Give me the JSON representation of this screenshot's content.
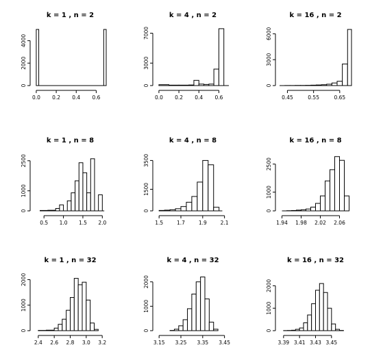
{
  "chart_data": [
    {
      "type": "bar",
      "title": "k = 1 , n = 2",
      "xlim": [
        -0.02,
        0.7
      ],
      "xticks": [
        0.0,
        0.2,
        0.4,
        0.6
      ],
      "xtick_labels": [
        "0.0",
        "0.2",
        "0.4",
        "0.6"
      ],
      "ylim": [
        0,
        5000
      ],
      "yticks": [
        0,
        2000,
        4000
      ],
      "ytick_labels": [
        "0",
        "2000",
        "4000"
      ],
      "bin_edges": [
        0.0,
        0.025,
        0.05,
        0.075,
        0.1,
        0.125,
        0.15,
        0.175,
        0.2,
        0.225,
        0.25,
        0.275,
        0.3,
        0.325,
        0.35,
        0.375,
        0.4,
        0.425,
        0.45,
        0.475,
        0.5,
        0.525,
        0.55,
        0.575,
        0.6,
        0.625,
        0.65,
        0.675,
        0.7
      ],
      "counts": [
        5000,
        0,
        0,
        0,
        0,
        0,
        0,
        0,
        0,
        0,
        0,
        0,
        0,
        0,
        0,
        0,
        0,
        0,
        0,
        0,
        0,
        0,
        0,
        0,
        0,
        0,
        0,
        5000
      ]
    },
    {
      "type": "bar",
      "title": "k = 4 , n = 2",
      "xlim": [
        -0.02,
        0.7
      ],
      "xticks": [
        0.0,
        0.2,
        0.4,
        0.6
      ],
      "xtick_labels": [
        "0.0",
        "0.2",
        "0.4",
        "0.6"
      ],
      "ylim": [
        0,
        7500
      ],
      "yticks": [
        0,
        3000,
        7000
      ],
      "ytick_labels": [
        "0",
        "3000",
        "7000"
      ],
      "bin_edges": [
        0.0,
        0.1,
        0.2,
        0.3,
        0.35,
        0.4,
        0.45,
        0.5,
        0.55,
        0.6,
        0.65,
        0.7
      ],
      "counts": [
        120,
        60,
        60,
        80,
        700,
        200,
        150,
        200,
        2200,
        7600,
        0
      ]
    },
    {
      "type": "bar",
      "title": "k = 16 , n = 2",
      "xlim": [
        0.42,
        0.695
      ],
      "xticks": [
        0.45,
        0.55,
        0.65
      ],
      "xtick_labels": [
        "0.45",
        "0.55",
        "0.65"
      ],
      "ylim": [
        0,
        6500
      ],
      "yticks": [
        0,
        3000,
        6000
      ],
      "ytick_labels": [
        "0",
        "3000",
        "6000"
      ],
      "bin_edges": [
        0.42,
        0.44,
        0.46,
        0.48,
        0.5,
        0.52,
        0.54,
        0.56,
        0.58,
        0.6,
        0.62,
        0.64,
        0.66,
        0.68,
        0.695
      ],
      "counts": [
        0,
        10,
        10,
        20,
        20,
        30,
        50,
        70,
        100,
        160,
        300,
        500,
        2500,
        6500
      ]
    },
    {
      "type": "bar",
      "title": "k = 1 , n = 8",
      "xlim": [
        0.25,
        2.1
      ],
      "xticks": [
        0.5,
        1.0,
        1.5,
        2.0
      ],
      "xtick_labels": [
        "0.5",
        "1.0",
        "1.5",
        "2.0"
      ],
      "ylim": [
        0,
        2800
      ],
      "yticks": [
        0,
        1000,
        2500
      ],
      "ytick_labels": [
        "0",
        "1000",
        "2500"
      ],
      "bin_edges": [
        0.4,
        0.6,
        0.8,
        0.9,
        1.0,
        1.1,
        1.2,
        1.3,
        1.4,
        1.5,
        1.6,
        1.7,
        1.8,
        1.9,
        2.0,
        2.05
      ],
      "counts": [
        20,
        30,
        120,
        300,
        0,
        500,
        900,
        1500,
        2400,
        1900,
        900,
        2600,
        0,
        800,
        0
      ]
    },
    {
      "type": "bar",
      "title": "k = 4 , n = 8",
      "xlim": [
        1.48,
        2.14
      ],
      "xticks": [
        1.5,
        1.7,
        1.9,
        2.1
      ],
      "xtick_labels": [
        "1.5",
        "1.7",
        "1.9",
        "2.1"
      ],
      "ylim": [
        0,
        3900
      ],
      "yticks": [
        0,
        1500,
        3500
      ],
      "ytick_labels": [
        "0",
        "1500",
        "3500"
      ],
      "bin_edges": [
        1.5,
        1.55,
        1.6,
        1.65,
        1.7,
        1.75,
        1.8,
        1.85,
        1.9,
        1.95,
        2.0,
        2.05,
        2.08
      ],
      "counts": [
        30,
        50,
        80,
        150,
        300,
        600,
        1000,
        2000,
        3500,
        3200,
        250,
        0
      ]
    },
    {
      "type": "bar",
      "title": "k = 16 , n = 8",
      "xlim": [
        1.935,
        2.085
      ],
      "xticks": [
        1.94,
        1.98,
        2.02,
        2.06
      ],
      "xtick_labels": [
        "1.94",
        "1.98",
        "2.02",
        "2.06"
      ],
      "ylim": [
        0,
        3000
      ],
      "yticks": [
        0,
        1000,
        2500
      ],
      "ytick_labels": [
        "0",
        "1000",
        "2500"
      ],
      "bin_edges": [
        1.94,
        1.95,
        1.96,
        1.97,
        1.98,
        1.99,
        2.0,
        2.01,
        2.02,
        2.03,
        2.04,
        2.05,
        2.06,
        2.07,
        2.08
      ],
      "counts": [
        0,
        10,
        20,
        40,
        60,
        100,
        200,
        400,
        800,
        1600,
        2200,
        2900,
        2700,
        800
      ]
    },
    {
      "type": "bar",
      "title": "k = 1 , n = 32",
      "xlim": [
        2.35,
        3.25
      ],
      "xticks": [
        2.4,
        2.6,
        2.8,
        3.0,
        3.2
      ],
      "xtick_labels": [
        "2.4",
        "2.6",
        "2.8",
        "3.0",
        "3.2"
      ],
      "ylim": [
        0,
        2200
      ],
      "yticks": [
        0,
        1000,
        2000
      ],
      "ytick_labels": [
        "0",
        "1000",
        "2000"
      ],
      "bin_edges": [
        2.4,
        2.5,
        2.6,
        2.65,
        2.7,
        2.75,
        2.8,
        2.85,
        2.9,
        2.95,
        3.0,
        3.05,
        3.1,
        3.15
      ],
      "counts": [
        10,
        20,
        100,
        250,
        450,
        800,
        1300,
        2050,
        1800,
        1900,
        1200,
        300,
        50
      ]
    },
    {
      "type": "bar",
      "title": "k = 4 , n = 32",
      "xlim": [
        3.14,
        3.47
      ],
      "xticks": [
        3.15,
        3.25,
        3.35,
        3.45
      ],
      "xtick_labels": [
        "3.15",
        "3.25",
        "3.35",
        "3.45"
      ],
      "ylim": [
        0,
        2300
      ],
      "yticks": [
        0,
        1000,
        2000
      ],
      "ytick_labels": [
        "0",
        "1000",
        "2000"
      ],
      "bin_edges": [
        3.2,
        3.22,
        3.24,
        3.26,
        3.28,
        3.3,
        3.32,
        3.34,
        3.36,
        3.38,
        3.4,
        3.42
      ],
      "counts": [
        10,
        60,
        200,
        450,
        900,
        1500,
        2000,
        2200,
        1300,
        350,
        60
      ]
    },
    {
      "type": "bar",
      "title": "k = 16 , n = 32",
      "xlim": [
        3.385,
        3.475
      ],
      "xticks": [
        3.39,
        3.41,
        3.43,
        3.45
      ],
      "xtick_labels": [
        "3.39",
        "3.41",
        "3.43",
        "3.45"
      ],
      "ylim": [
        0,
        2500
      ],
      "yticks": [
        0,
        1000,
        2000
      ],
      "ytick_labels": [
        "0",
        "1000",
        "2000"
      ],
      "bin_edges": [
        3.39,
        3.395,
        3.4,
        3.405,
        3.41,
        3.415,
        3.42,
        3.425,
        3.43,
        3.435,
        3.44,
        3.445,
        3.45,
        3.455,
        3.46,
        3.465
      ],
      "counts": [
        5,
        10,
        20,
        60,
        120,
        350,
        700,
        1200,
        1800,
        2100,
        1700,
        1000,
        300,
        60,
        10
      ]
    }
  ]
}
